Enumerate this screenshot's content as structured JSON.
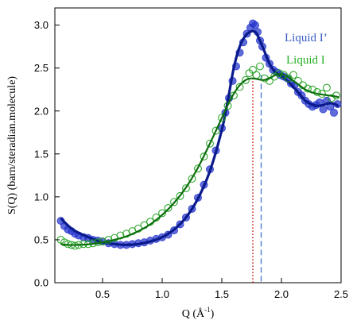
{
  "chart_data": {
    "type": "scatter",
    "xlabel": "Q (Å",
    "xlabel_sup": "-1",
    "xlabel_close": ")",
    "ylabel": "S(Q) (barn/steradian.molecule)",
    "xlim": [
      0.1,
      2.5
    ],
    "ylim": [
      0.0,
      3.2
    ],
    "xticks": [
      0.5,
      1.0,
      1.5,
      2.0,
      2.5
    ],
    "xtick_labels": [
      "0.5",
      "1.0",
      "1.5",
      "2.0",
      "2.5"
    ],
    "yticks": [
      0.0,
      0.5,
      1.0,
      1.5,
      2.0,
      2.5,
      3.0
    ],
    "ytick_labels": [
      "0.0",
      "0.5",
      "1.0",
      "1.5",
      "2.0",
      "2.5",
      "3.0"
    ],
    "grid": false,
    "legend_position": "top-right",
    "series": [
      {
        "name": "Liquid I’",
        "color": "#2233cc",
        "legend_color": "#3a5fc4",
        "marker": "filled-circle",
        "fit": {
          "x": [
            0.15,
            0.2,
            0.25,
            0.3,
            0.4,
            0.5,
            0.6,
            0.7,
            0.8,
            0.9,
            1.0,
            1.1,
            1.2,
            1.3,
            1.4,
            1.5,
            1.55,
            1.6,
            1.65,
            1.7,
            1.75,
            1.78,
            1.8,
            1.85,
            1.9,
            1.95,
            2.0,
            2.05,
            2.1,
            2.15,
            2.2,
            2.25,
            2.3,
            2.35,
            2.4,
            2.45,
            2.48
          ],
          "y": [
            0.75,
            0.68,
            0.62,
            0.58,
            0.52,
            0.47,
            0.45,
            0.44,
            0.45,
            0.48,
            0.53,
            0.62,
            0.76,
            0.98,
            1.3,
            1.78,
            2.12,
            2.5,
            2.75,
            2.88,
            2.93,
            2.92,
            2.88,
            2.72,
            2.55,
            2.45,
            2.4,
            2.35,
            2.28,
            2.2,
            2.12,
            2.08,
            2.06,
            2.07,
            2.09,
            2.08,
            2.05
          ]
        },
        "points": {
          "x": [
            0.15,
            0.18,
            0.21,
            0.24,
            0.27,
            0.3,
            0.34,
            0.38,
            0.42,
            0.46,
            0.5,
            0.55,
            0.6,
            0.65,
            0.7,
            0.75,
            0.8,
            0.85,
            0.9,
            0.95,
            1.0,
            1.05,
            1.1,
            1.15,
            1.2,
            1.25,
            1.3,
            1.35,
            1.4,
            1.45,
            1.5,
            1.53,
            1.56,
            1.59,
            1.62,
            1.65,
            1.68,
            1.71,
            1.74,
            1.76,
            1.78,
            1.8,
            1.82,
            1.84,
            1.87,
            1.9,
            1.93,
            1.96,
            1.99,
            2.02,
            2.05,
            2.08,
            2.11,
            2.14,
            2.17,
            2.2,
            2.23,
            2.26,
            2.29,
            2.32,
            2.35,
            2.38,
            2.41,
            2.44,
            2.47
          ],
          "y": [
            0.72,
            0.66,
            0.62,
            0.6,
            0.57,
            0.55,
            0.53,
            0.52,
            0.5,
            0.49,
            0.48,
            0.46,
            0.45,
            0.44,
            0.44,
            0.45,
            0.46,
            0.47,
            0.49,
            0.51,
            0.53,
            0.56,
            0.61,
            0.68,
            0.76,
            0.86,
            0.99,
            1.14,
            1.32,
            1.54,
            1.8,
            1.98,
            2.15,
            2.35,
            2.52,
            2.68,
            2.8,
            2.9,
            2.97,
            3.02,
            3.0,
            2.92,
            2.82,
            2.75,
            2.62,
            2.55,
            2.48,
            2.45,
            2.42,
            2.4,
            2.38,
            2.32,
            2.3,
            2.22,
            2.18,
            2.12,
            2.08,
            2.05,
            2.07,
            2.1,
            2.02,
            2.12,
            2.05,
            1.98,
            2.08
          ]
        }
      },
      {
        "name": "Liquid I",
        "color": "#1a9e1a",
        "legend_color": "#22b022",
        "marker": "open-circle",
        "fit": {
          "x": [
            0.15,
            0.2,
            0.3,
            0.4,
            0.5,
            0.6,
            0.7,
            0.8,
            0.9,
            1.0,
            1.1,
            1.2,
            1.3,
            1.4,
            1.5,
            1.55,
            1.6,
            1.65,
            1.7,
            1.75,
            1.8,
            1.85,
            1.9,
            1.95,
            2.0,
            2.05,
            2.1,
            2.15,
            2.2,
            2.25,
            2.3,
            2.35,
            2.4,
            2.45,
            2.48
          ],
          "y": [
            0.45,
            0.44,
            0.44,
            0.45,
            0.47,
            0.5,
            0.54,
            0.6,
            0.68,
            0.79,
            0.93,
            1.11,
            1.34,
            1.62,
            1.92,
            2.07,
            2.2,
            2.3,
            2.36,
            2.38,
            2.37,
            2.36,
            2.38,
            2.42,
            2.43,
            2.4,
            2.35,
            2.3,
            2.25,
            2.22,
            2.2,
            2.19,
            2.18,
            2.17,
            2.16
          ]
        },
        "points": {
          "x": [
            0.15,
            0.18,
            0.21,
            0.24,
            0.27,
            0.3,
            0.34,
            0.38,
            0.42,
            0.46,
            0.5,
            0.55,
            0.6,
            0.65,
            0.7,
            0.75,
            0.8,
            0.85,
            0.9,
            0.95,
            1.0,
            1.05,
            1.1,
            1.15,
            1.2,
            1.25,
            1.3,
            1.35,
            1.4,
            1.45,
            1.5,
            1.55,
            1.6,
            1.65,
            1.7,
            1.73,
            1.76,
            1.79,
            1.82,
            1.86,
            1.9,
            1.94,
            1.98,
            2.02,
            2.06,
            2.1,
            2.14,
            2.18,
            2.22,
            2.26,
            2.3,
            2.34,
            2.38,
            2.42,
            2.46
          ],
          "y": [
            0.5,
            0.47,
            0.45,
            0.44,
            0.43,
            0.44,
            0.45,
            0.45,
            0.46,
            0.47,
            0.48,
            0.5,
            0.52,
            0.55,
            0.57,
            0.6,
            0.63,
            0.67,
            0.71,
            0.76,
            0.81,
            0.87,
            0.94,
            1.01,
            1.1,
            1.21,
            1.33,
            1.47,
            1.62,
            1.77,
            1.92,
            2.06,
            2.18,
            2.28,
            2.36,
            2.44,
            2.48,
            2.42,
            2.52,
            2.38,
            2.35,
            2.4,
            2.44,
            2.42,
            2.38,
            2.42,
            2.35,
            2.3,
            2.26,
            2.25,
            2.22,
            2.2,
            2.27,
            2.15,
            2.18
          ]
        }
      }
    ],
    "reference_lines": [
      {
        "x": 1.76,
        "style": "dotted",
        "color": "#cc2222",
        "y_top": 2.42
      },
      {
        "x": 1.83,
        "style": "dashed",
        "color": "#4a7fd0",
        "y_top": 2.42
      }
    ]
  }
}
